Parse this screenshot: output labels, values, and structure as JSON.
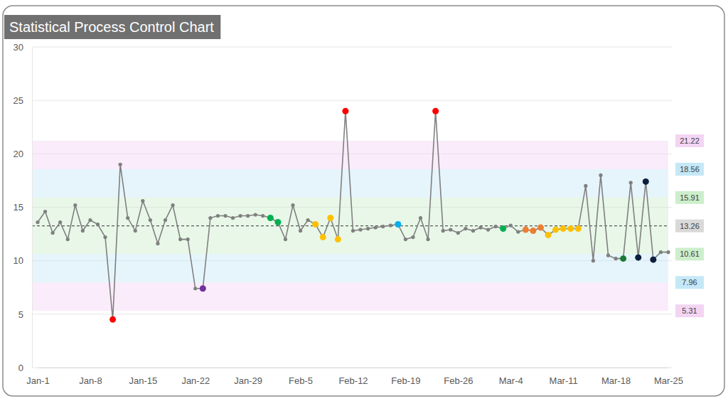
{
  "chart_data": {
    "type": "line",
    "title": "Statistical Process Control Chart",
    "marker": "circle",
    "grid": true,
    "color": "#808080",
    "categories": [
      "Jan-1",
      null,
      null,
      null,
      null,
      null,
      null,
      "Jan-8",
      null,
      null,
      null,
      null,
      null,
      null,
      "Jan-15",
      null,
      null,
      null,
      null,
      null,
      null,
      "Jan-22",
      null,
      null,
      null,
      null,
      null,
      null,
      "Jan-29",
      null,
      null,
      null,
      null,
      null,
      null,
      "Feb-5",
      null,
      null,
      null,
      null,
      null,
      null,
      "Feb-12",
      null,
      null,
      null,
      null,
      null,
      null,
      "Feb-19",
      null,
      null,
      null,
      null,
      null,
      null,
      "Feb-26",
      null,
      null,
      null,
      null,
      null,
      null,
      "Mar-4",
      null,
      null,
      null,
      null,
      null,
      null,
      "Mar-11",
      null,
      null,
      null,
      null,
      null,
      null,
      "Mar-18",
      null,
      null,
      null,
      null,
      null,
      null,
      "Mar-25"
    ],
    "values": [
      13.6,
      14.6,
      12.6,
      13.6,
      12.0,
      15.2,
      12.8,
      13.8,
      13.4,
      12.2,
      4.5,
      19.0,
      14.0,
      12.8,
      15.6,
      13.8,
      11.6,
      13.8,
      15.2,
      12.0,
      12.0,
      7.4,
      7.4,
      14.0,
      14.2,
      14.2,
      14.0,
      14.2,
      14.2,
      14.3,
      14.2,
      14.0,
      13.6,
      12.0,
      15.2,
      12.8,
      13.8,
      13.4,
      12.2,
      14.0,
      12.0,
      24.0,
      12.8,
      12.9,
      13.0,
      13.1,
      13.2,
      13.3,
      13.4,
      12.0,
      12.2,
      14.0,
      12.0,
      24.0,
      12.8,
      12.9,
      12.6,
      13.0,
      12.8,
      13.1,
      12.9,
      13.2,
      13.0,
      13.3,
      12.7,
      12.9,
      12.8,
      13.1,
      12.4,
      12.9,
      13.0,
      13.0,
      13.0,
      17.0,
      10.0,
      18.0,
      10.5,
      10.2,
      10.2,
      17.3,
      10.3,
      17.4,
      10.1,
      10.8,
      10.8
    ],
    "colors": [
      "#808080",
      "#808080",
      "#808080",
      "#808080",
      "#808080",
      "#808080",
      "#808080",
      "#808080",
      "#808080",
      "#808080",
      "#ff0000",
      "#808080",
      "#808080",
      "#808080",
      "#808080",
      "#808080",
      "#808080",
      "#808080",
      "#808080",
      "#808080",
      "#808080",
      "#808080",
      "#7030a0",
      "#808080",
      "#808080",
      "#808080",
      "#808080",
      "#808080",
      "#808080",
      "#808080",
      "#808080",
      "#00b050",
      "#00b050",
      "#808080",
      "#808080",
      "#808080",
      "#808080",
      "#ffc000",
      "#ffc000",
      "#ffc000",
      "#ffc000",
      "#ff0000",
      "#808080",
      "#808080",
      "#808080",
      "#808080",
      "#808080",
      "#808080",
      "#00b0f0",
      "#808080",
      "#808080",
      "#808080",
      "#808080",
      "#ff0000",
      "#808080",
      "#808080",
      "#808080",
      "#808080",
      "#808080",
      "#808080",
      "#808080",
      "#808080",
      "#00b050",
      "#808080",
      "#808080",
      "#ed7d31",
      "#ed7d31",
      "#ed7d31",
      "#ffc000",
      "#ffc000",
      "#ffc000",
      "#ffc000",
      "#ffc000",
      "#808080",
      "#808080",
      "#808080",
      "#808080",
      "#808080",
      "#1b7a34",
      "#808080",
      "#0c1f3f",
      "#0c1f3f",
      "#0c1f3f",
      "#808080",
      "#808080"
    ],
    "control_limits": [
      {
        "value": 21.22,
        "color": "#f3d5f3"
      },
      {
        "value": 18.56,
        "color": "#c5e8f7"
      },
      {
        "value": 15.91,
        "color": "#cdeecb"
      },
      {
        "value": 13.26,
        "color": "#d9d9d9",
        "line_style": "dashed"
      },
      {
        "value": 10.61,
        "color": "#cdeecb"
      },
      {
        "value": 7.96,
        "color": "#c5e8f7"
      },
      {
        "value": 5.31,
        "color": "#f3d5f3"
      }
    ],
    "ylim": [
      0,
      30
    ],
    "yticks": [
      0,
      5,
      10,
      15,
      20,
      25,
      30
    ]
  }
}
